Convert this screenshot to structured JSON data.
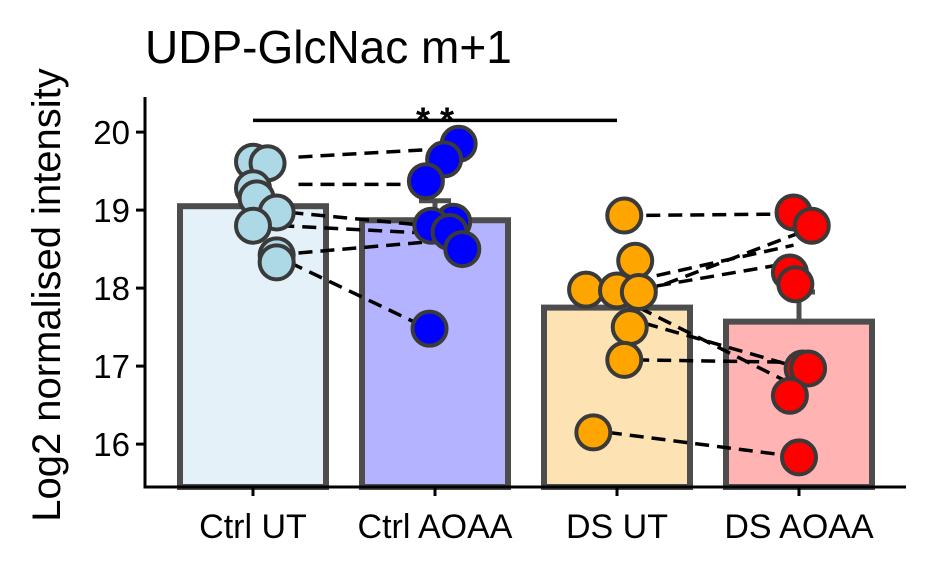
{
  "chart_data": {
    "type": "bar",
    "title": "UDP-GlcNac m+1",
    "xlabel": "",
    "ylabel": "Log2 normalised intensity",
    "ylim": [
      15.45,
      20.45
    ],
    "yticks": [
      16,
      17,
      18,
      19,
      20
    ],
    "categories": [
      "Ctrl UT",
      "Ctrl AOAA",
      "DS UT",
      "DS AOAA"
    ],
    "values": [
      19.05,
      18.87,
      17.75,
      17.57
    ],
    "errors": [
      0.0,
      0.25,
      0.0,
      0.38
    ],
    "fill_colors": [
      "#e4f1f8",
      "#b3b3ff",
      "#fde3b3",
      "#ffb3b3"
    ],
    "point_colors": [
      "#add8e6",
      "#0000ff",
      "#ffa500",
      "#ff0000"
    ],
    "points": [
      [
        {
          "x": 0.0,
          "y": 19.62
        },
        {
          "x": 0.08,
          "y": 19.6
        },
        {
          "x": 0.0,
          "y": 19.28
        },
        {
          "x": 0.02,
          "y": 19.15
        },
        {
          "x": 0.13,
          "y": 18.97
        },
        {
          "x": 0.0,
          "y": 18.8
        },
        {
          "x": 0.13,
          "y": 18.42
        },
        {
          "x": 0.13,
          "y": 18.33
        }
      ],
      [
        {
          "x": 1.13,
          "y": 19.85
        },
        {
          "x": 1.05,
          "y": 19.65
        },
        {
          "x": 0.95,
          "y": 19.37
        },
        {
          "x": 1.1,
          "y": 18.85
        },
        {
          "x": 0.98,
          "y": 18.8
        },
        {
          "x": 1.08,
          "y": 18.72
        },
        {
          "x": 1.15,
          "y": 18.5
        },
        {
          "x": 0.97,
          "y": 17.48
        }
      ],
      [
        {
          "x": 2.04,
          "y": 18.93
        },
        {
          "x": 2.1,
          "y": 18.35
        },
        {
          "x": 1.83,
          "y": 17.98
        },
        {
          "x": 2.0,
          "y": 17.97
        },
        {
          "x": 2.12,
          "y": 17.95
        },
        {
          "x": 2.07,
          "y": 17.5
        },
        {
          "x": 2.04,
          "y": 17.08
        },
        {
          "x": 1.87,
          "y": 16.15
        }
      ],
      [
        {
          "x": 2.97,
          "y": 18.97
        },
        {
          "x": 3.07,
          "y": 18.8
        },
        {
          "x": 2.95,
          "y": 18.2
        },
        {
          "x": 2.98,
          "y": 18.05
        },
        {
          "x": 3.02,
          "y": 16.97
        },
        {
          "x": 3.05,
          "y": 16.97
        },
        {
          "x": 2.95,
          "y": 16.62
        },
        {
          "x": 3.0,
          "y": 15.83
        }
      ]
    ],
    "pairs": [
      [
        {
          "x": 0.25,
          "y": 19.68
        },
        {
          "x": 1.0,
          "y": 19.78
        }
      ],
      [
        {
          "x": 0.25,
          "y": 19.33
        },
        {
          "x": 0.85,
          "y": 19.33
        }
      ],
      [
        {
          "x": 0.2,
          "y": 18.97
        },
        {
          "x": 1.05,
          "y": 18.78
        }
      ],
      [
        {
          "x": 0.15,
          "y": 18.8
        },
        {
          "x": 1.0,
          "y": 18.7
        }
      ],
      [
        {
          "x": 0.25,
          "y": 18.45
        },
        {
          "x": 1.0,
          "y": 18.6
        }
      ],
      [
        {
          "x": 0.2,
          "y": 18.33
        },
        {
          "x": 0.9,
          "y": 17.55
        }
      ],
      [
        {
          "x": 2.04,
          "y": 18.93
        },
        {
          "x": 2.97,
          "y": 18.95
        }
      ],
      [
        {
          "x": 2.1,
          "y": 18.1
        },
        {
          "x": 2.97,
          "y": 18.55
        }
      ],
      [
        {
          "x": 2.15,
          "y": 17.95
        },
        {
          "x": 3.05,
          "y": 18.75
        }
      ],
      [
        {
          "x": 2.1,
          "y": 17.98
        },
        {
          "x": 3.02,
          "y": 18.35
        }
      ],
      [
        {
          "x": 2.15,
          "y": 17.55
        },
        {
          "x": 3.0,
          "y": 16.98
        }
      ],
      [
        {
          "x": 2.12,
          "y": 17.75
        },
        {
          "x": 3.02,
          "y": 16.7
        }
      ],
      [
        {
          "x": 2.1,
          "y": 17.08
        },
        {
          "x": 2.95,
          "y": 17.05
        }
      ],
      [
        {
          "x": 1.95,
          "y": 16.15
        },
        {
          "x": 2.95,
          "y": 15.85
        }
      ]
    ],
    "significance": {
      "from": 0,
      "to": 2,
      "y": 20.15,
      "label": "* *"
    },
    "legend": "none",
    "grid": false
  }
}
